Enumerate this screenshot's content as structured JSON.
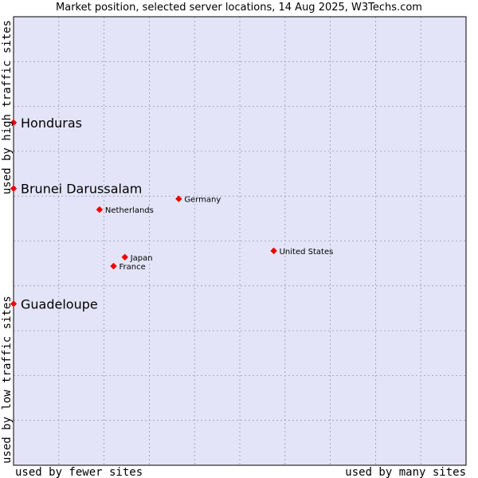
{
  "chart_data": {
    "type": "scatter",
    "title": "Market position, selected server locations, 14 Aug 2025, W3Techs.com",
    "x_axis": {
      "left_label": "used by fewer sites",
      "right_label": "used by many sites",
      "range": [
        0,
        100
      ]
    },
    "y_axis": {
      "bottom_label": "used by low traffic sites",
      "top_label": "used by high traffic sites",
      "range": [
        0,
        100
      ]
    },
    "grid": true,
    "background_color": "#e4e4f8",
    "point_color": "#ee0000",
    "points": [
      {
        "label": "Honduras",
        "x": 0.0,
        "y": 76.4,
        "highlight": true
      },
      {
        "label": "Brunei Darussalam",
        "x": 0.0,
        "y": 61.7,
        "highlight": true
      },
      {
        "label": "Guadeloupe",
        "x": 0.0,
        "y": 36.0,
        "highlight": true
      },
      {
        "label": "Germany",
        "x": 36.5,
        "y": 59.4,
        "highlight": false
      },
      {
        "label": "Netherlands",
        "x": 19.0,
        "y": 57.0,
        "highlight": false
      },
      {
        "label": "United States",
        "x": 57.5,
        "y": 47.8,
        "highlight": false
      },
      {
        "label": "Japan",
        "x": 24.6,
        "y": 46.4,
        "highlight": false
      },
      {
        "label": "France",
        "x": 22.1,
        "y": 44.4,
        "highlight": false
      }
    ]
  }
}
